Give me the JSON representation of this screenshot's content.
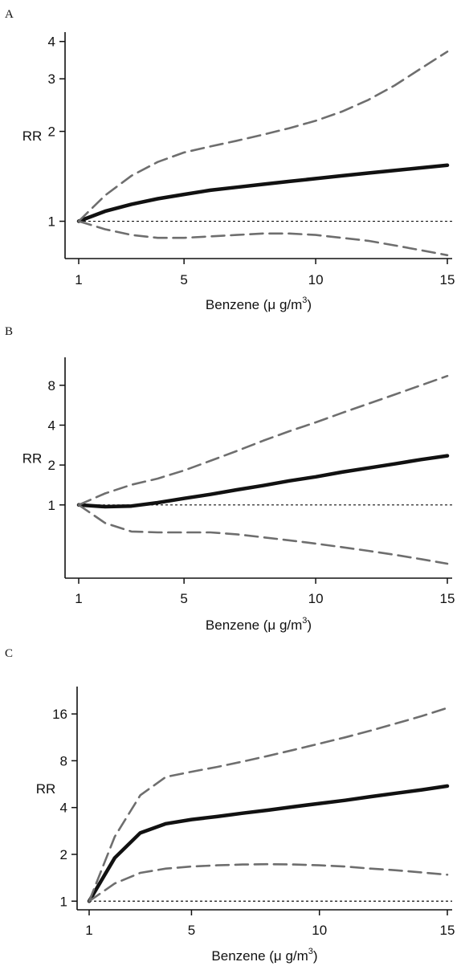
{
  "chart_data": [
    {
      "type": "line",
      "panel": "A",
      "xlabel_main": "Benzene (",
      "xlabel_unit": "μ g/m",
      "xlabel_sup": "3",
      "xlabel_close": ")",
      "ylabel": "RR",
      "xlim": [
        1,
        15
      ],
      "ylim": [
        0.75,
        4.3
      ],
      "y_scale": "log",
      "x_ticks": [
        1,
        5,
        10,
        15
      ],
      "y_ticks": [
        1,
        2,
        3,
        4
      ],
      "reference_line": 1,
      "series": [
        {
          "role": "estimate",
          "x": [
            1,
            2,
            3,
            4,
            5,
            6,
            7,
            8,
            9,
            10,
            11,
            12,
            13,
            14,
            15
          ],
          "y": [
            1.0,
            1.08,
            1.14,
            1.19,
            1.23,
            1.27,
            1.3,
            1.33,
            1.36,
            1.39,
            1.42,
            1.45,
            1.48,
            1.51,
            1.54
          ]
        },
        {
          "role": "upper",
          "x": [
            1,
            2,
            3,
            4,
            5,
            6,
            7,
            8,
            9,
            10,
            11,
            12,
            13,
            14,
            15
          ],
          "y": [
            1.0,
            1.22,
            1.42,
            1.58,
            1.7,
            1.78,
            1.86,
            1.95,
            2.05,
            2.17,
            2.33,
            2.55,
            2.85,
            3.25,
            3.7
          ]
        },
        {
          "role": "lower",
          "x": [
            1,
            2,
            3,
            4,
            5,
            6,
            7,
            8,
            9,
            10,
            11,
            12,
            13,
            14,
            15
          ],
          "y": [
            1.0,
            0.94,
            0.9,
            0.88,
            0.88,
            0.89,
            0.9,
            0.91,
            0.91,
            0.9,
            0.88,
            0.86,
            0.83,
            0.8,
            0.77
          ]
        }
      ]
    },
    {
      "type": "line",
      "panel": "B",
      "xlabel_main": "Benzene (",
      "xlabel_unit": "μ g/m",
      "xlabel_sup": "3",
      "xlabel_close": ")",
      "ylabel": "RR",
      "xlim": [
        1,
        15
      ],
      "ylim": [
        0.28,
        13.0
      ],
      "y_scale": "log",
      "x_ticks": [
        1,
        5,
        10,
        15
      ],
      "y_ticks": [
        1,
        2,
        4,
        8
      ],
      "reference_line": 1,
      "series": [
        {
          "role": "estimate",
          "x": [
            1,
            2,
            3,
            4,
            5,
            6,
            7,
            8,
            9,
            10,
            11,
            12,
            13,
            14,
            15
          ],
          "y": [
            1.0,
            0.97,
            0.98,
            1.04,
            1.12,
            1.2,
            1.3,
            1.4,
            1.52,
            1.63,
            1.77,
            1.9,
            2.04,
            2.2,
            2.35
          ]
        },
        {
          "role": "upper",
          "x": [
            1,
            2,
            3,
            4,
            5,
            6,
            7,
            8,
            9,
            10,
            11,
            12,
            13,
            14,
            15
          ],
          "y": [
            1.0,
            1.22,
            1.42,
            1.58,
            1.82,
            2.15,
            2.55,
            3.05,
            3.6,
            4.2,
            4.95,
            5.8,
            6.8,
            8.0,
            9.4
          ]
        },
        {
          "role": "lower",
          "x": [
            1,
            2,
            3,
            4,
            5,
            6,
            7,
            8,
            9,
            10,
            11,
            12,
            13,
            14,
            15
          ],
          "y": [
            1.0,
            0.73,
            0.63,
            0.62,
            0.62,
            0.62,
            0.6,
            0.57,
            0.54,
            0.51,
            0.48,
            0.45,
            0.42,
            0.39,
            0.36
          ]
        }
      ]
    },
    {
      "type": "line",
      "panel": "C",
      "xlabel_main": "Benzene (",
      "xlabel_unit": "μ g/m",
      "xlabel_sup": "3",
      "xlabel_close": ")",
      "ylabel": "RR",
      "xlim": [
        0.6,
        15.2
      ],
      "ylim": [
        0.88,
        24.0
      ],
      "y_scale": "log",
      "x_ticks": [
        1,
        5,
        10,
        15
      ],
      "y_ticks": [
        1,
        2,
        4,
        8,
        16
      ],
      "reference_line": 1,
      "series": [
        {
          "role": "estimate",
          "x": [
            1,
            2,
            3,
            4,
            5,
            6,
            7,
            8,
            9,
            10,
            11,
            12,
            13,
            14,
            15
          ],
          "y": [
            1.0,
            1.9,
            2.75,
            3.15,
            3.35,
            3.5,
            3.68,
            3.85,
            4.05,
            4.25,
            4.45,
            4.7,
            4.95,
            5.2,
            5.5
          ]
        },
        {
          "role": "upper",
          "x": [
            1,
            2,
            3,
            4,
            5,
            6,
            7,
            8,
            9,
            10,
            11,
            12,
            13,
            14,
            15
          ],
          "y": [
            1.0,
            2.6,
            4.8,
            6.3,
            6.8,
            7.3,
            7.9,
            8.6,
            9.4,
            10.3,
            11.3,
            12.5,
            13.9,
            15.5,
            17.5
          ]
        },
        {
          "role": "lower",
          "x": [
            1,
            2,
            3,
            4,
            5,
            6,
            7,
            8,
            9,
            10,
            11,
            12,
            13,
            14,
            15
          ],
          "y": [
            1.0,
            1.3,
            1.52,
            1.62,
            1.67,
            1.7,
            1.72,
            1.73,
            1.72,
            1.7,
            1.67,
            1.62,
            1.58,
            1.53,
            1.48
          ]
        }
      ]
    }
  ]
}
